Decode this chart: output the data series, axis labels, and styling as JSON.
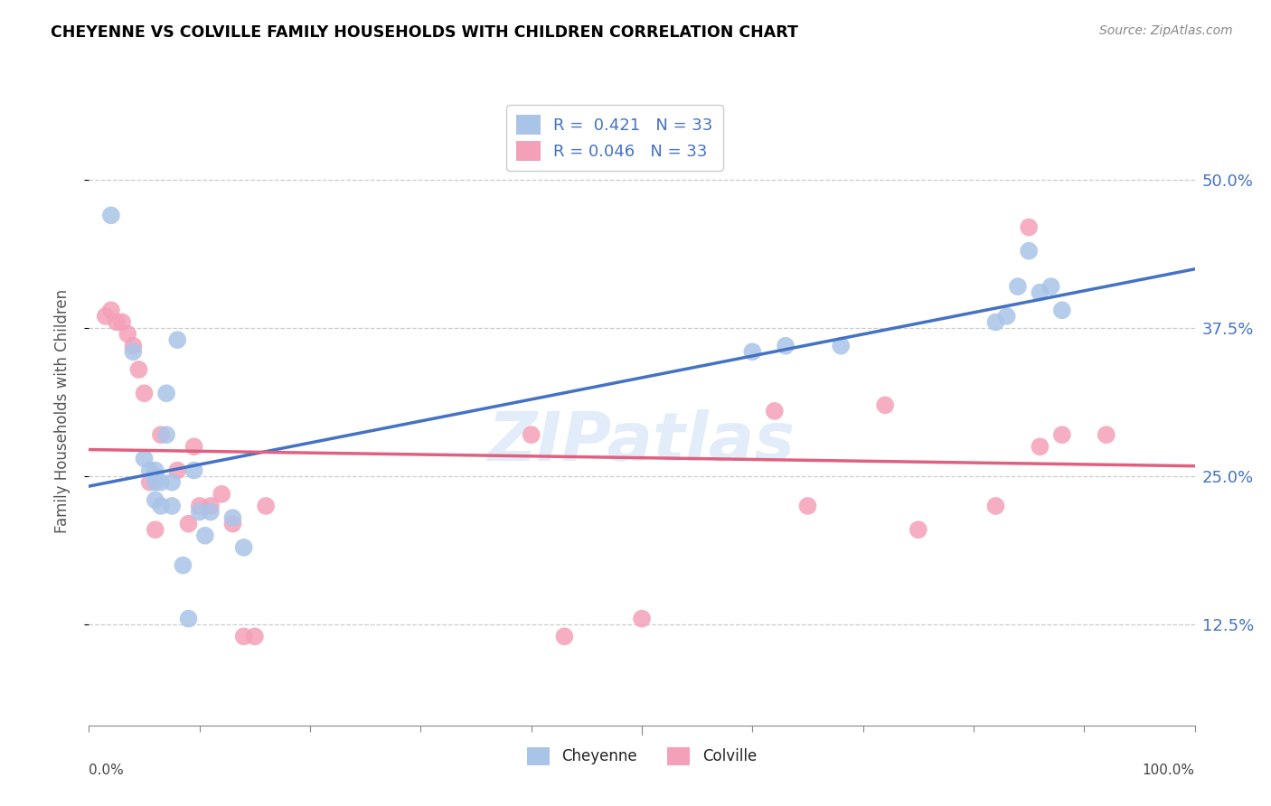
{
  "title": "CHEYENNE VS COLVILLE FAMILY HOUSEHOLDS WITH CHILDREN CORRELATION CHART",
  "source": "Source: ZipAtlas.com",
  "ylabel": "Family Households with Children",
  "cheyenne_color": "#aac4e8",
  "colville_color": "#f4a0b8",
  "cheyenne_line_color": "#4472c4",
  "colville_line_color": "#e06080",
  "ytick_labels": [
    "12.5%",
    "25.0%",
    "37.5%",
    "50.0%"
  ],
  "ytick_values": [
    0.125,
    0.25,
    0.375,
    0.5
  ],
  "xlim": [
    0.0,
    1.0
  ],
  "ylim": [
    0.04,
    0.57
  ],
  "cheyenne_x": [
    0.02,
    0.04,
    0.05,
    0.055,
    0.06,
    0.06,
    0.06,
    0.06,
    0.065,
    0.065,
    0.07,
    0.07,
    0.075,
    0.075,
    0.08,
    0.085,
    0.09,
    0.095,
    0.1,
    0.105,
    0.11,
    0.13,
    0.14,
    0.6,
    0.63,
    0.68,
    0.82,
    0.83,
    0.84,
    0.85,
    0.86,
    0.87,
    0.88
  ],
  "cheyenne_y": [
    0.47,
    0.355,
    0.265,
    0.255,
    0.255,
    0.25,
    0.245,
    0.23,
    0.245,
    0.225,
    0.32,
    0.285,
    0.245,
    0.225,
    0.365,
    0.175,
    0.13,
    0.255,
    0.22,
    0.2,
    0.22,
    0.215,
    0.19,
    0.355,
    0.36,
    0.36,
    0.38,
    0.385,
    0.41,
    0.44,
    0.405,
    0.41,
    0.39
  ],
  "colville_x": [
    0.015,
    0.02,
    0.025,
    0.03,
    0.035,
    0.04,
    0.045,
    0.05,
    0.055,
    0.06,
    0.065,
    0.08,
    0.09,
    0.095,
    0.1,
    0.11,
    0.12,
    0.13,
    0.14,
    0.15,
    0.16,
    0.4,
    0.43,
    0.5,
    0.62,
    0.65,
    0.72,
    0.75,
    0.82,
    0.85,
    0.86,
    0.88,
    0.92
  ],
  "colville_y": [
    0.385,
    0.39,
    0.38,
    0.38,
    0.37,
    0.36,
    0.34,
    0.32,
    0.245,
    0.205,
    0.285,
    0.255,
    0.21,
    0.275,
    0.225,
    0.225,
    0.235,
    0.21,
    0.115,
    0.115,
    0.225,
    0.285,
    0.115,
    0.13,
    0.305,
    0.225,
    0.31,
    0.205,
    0.225,
    0.46,
    0.275,
    0.285,
    0.285
  ],
  "legend_r_cheyenne": "R =  0.421",
  "legend_n_cheyenne": "N = 33",
  "legend_r_colville": "R = 0.046",
  "legend_n_colville": "N = 33"
}
